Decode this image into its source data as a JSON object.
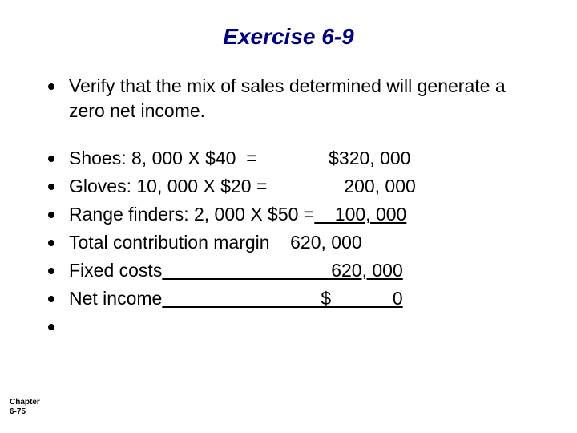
{
  "title": "Exercise 6-9",
  "main_bullet": "Verify that the mix of sales determined will generate a zero net income.",
  "rows": [
    {
      "label": "Shoes: 8, 000 X $40  =",
      "value": "              $320, 000",
      "underline": false
    },
    {
      "label": "Gloves: 10, 000 X $20 =",
      "value": "               200, 000",
      "underline": false
    },
    {
      "label": "Range finders: 2, 000 X $50 =",
      "value": "    100, 000",
      "underline": true
    },
    {
      "label": "Total contribution margin",
      "value": "    620, 000",
      "underline": false
    },
    {
      "label": "Fixed costs",
      "value": "                                 620, 000",
      "underline": true
    },
    {
      "label": "Net income",
      "value": "                               $            0",
      "underline": true
    }
  ],
  "footer_line1": "Chapter",
  "footer_line2": "6-75",
  "colors": {
    "title_color": "#000080",
    "text_color": "#000000",
    "background": "#ffffff",
    "bullet_color": "#000000"
  },
  "typography": {
    "title_fontsize": 28,
    "body_fontsize": 23,
    "footer_fontsize": 10
  }
}
